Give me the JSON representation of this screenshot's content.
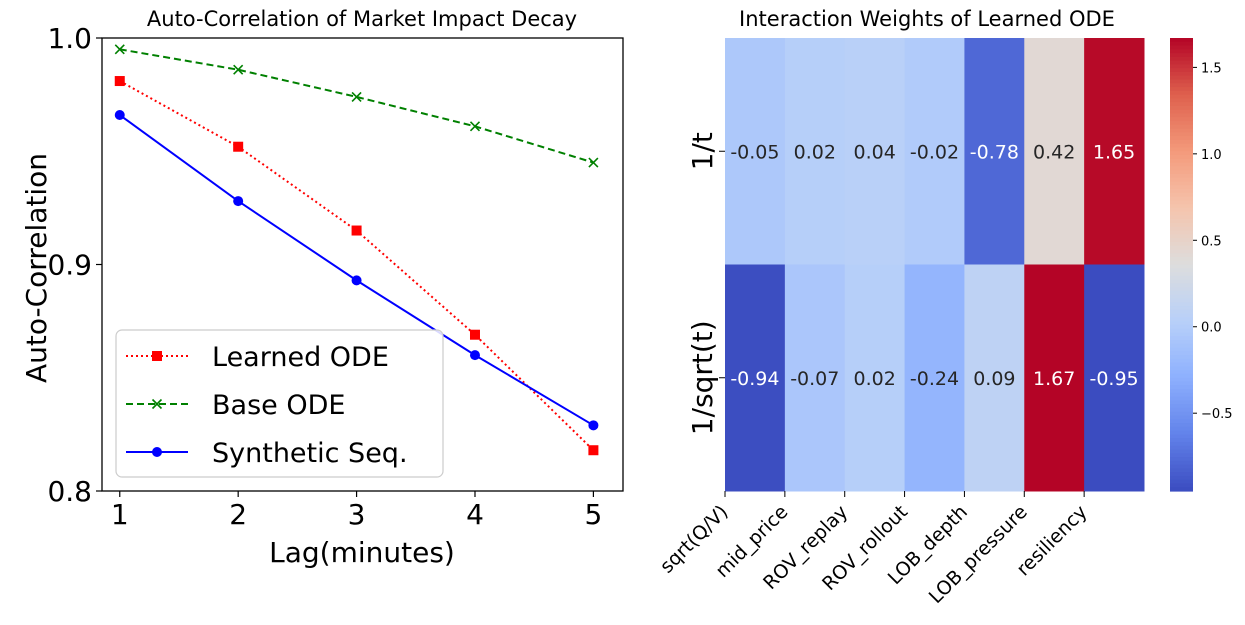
{
  "chart_data": [
    {
      "type": "line",
      "title": "Auto-Correlation of Market Impact Decay",
      "xlabel": "Lag(minutes)",
      "ylabel": "Auto-Correlation",
      "x": [
        1,
        2,
        3,
        4,
        5
      ],
      "xticks": [
        "1",
        "2",
        "3",
        "4",
        "5"
      ],
      "xlim": [
        0.85,
        5.25
      ],
      "ylim": [
        0.8,
        1.0
      ],
      "yticks": [
        "0.8",
        "0.9",
        "1.0"
      ],
      "legend": "lower-left",
      "grid": false,
      "series": [
        {
          "name": "Learned ODE",
          "values": [
            0.981,
            0.952,
            0.915,
            0.869,
            0.818
          ],
          "color": "#ff0000",
          "marker": "square",
          "linestyle": "dotted"
        },
        {
          "name": "Base ODE",
          "values": [
            0.995,
            0.986,
            0.974,
            0.961,
            0.945
          ],
          "color": "#008000",
          "marker": "x",
          "linestyle": "dashed"
        },
        {
          "name": "Synthetic Seq.",
          "values": [
            0.966,
            0.928,
            0.893,
            0.86,
            0.829
          ],
          "color": "#0000ff",
          "marker": "circle",
          "linestyle": "solid"
        }
      ]
    },
    {
      "type": "heatmap",
      "title": "Interaction Weights of Learned ODE",
      "colormap": "coolwarm",
      "columns": [
        "sqrt(Q/V)",
        "mid_price",
        "ROV_replay",
        "ROV_rollout",
        "LOB_depth",
        "LOB_pressure",
        "resiliency"
      ],
      "rows": [
        "1/t",
        "1/sqrt(t)"
      ],
      "values": [
        [
          -0.05,
          0.02,
          0.04,
          -0.02,
          -0.78,
          0.42,
          1.65
        ],
        [
          -0.94,
          -0.07,
          0.02,
          -0.24,
          0.09,
          1.67,
          -0.95
        ]
      ],
      "cell_labels": [
        [
          "-0.05",
          "0.02",
          "0.04",
          "-0.02",
          "-0.78",
          "0.42",
          "1.65"
        ],
        [
          "-0.94",
          "-0.07",
          "0.02",
          "-0.24",
          "0.09",
          "1.67",
          "-0.95"
        ]
      ],
      "colorbar": {
        "range": [
          -0.95,
          1.67
        ],
        "ticks": [
          -0.5,
          0.0,
          0.5,
          1.0,
          1.5
        ],
        "tick_labels": [
          "−0.5",
          "0.0",
          "0.5",
          "1.0",
          "1.5"
        ]
      }
    }
  ]
}
